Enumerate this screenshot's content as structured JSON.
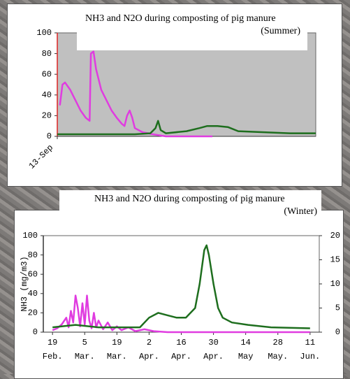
{
  "chart_data": [
    {
      "type": "line",
      "title": "NH3 and N2O during composting of pig manure (Summer)",
      "xlim": [
        0,
        100
      ],
      "xticks": [
        {
          "value": 0,
          "label": "13-Sep"
        }
      ],
      "ylim": [
        0,
        100
      ],
      "yticks": [
        0,
        20,
        40,
        60,
        80,
        100
      ],
      "series": [
        {
          "color": "#e03ce0",
          "x": [
            1,
            2,
            3,
            5,
            7,
            9,
            11,
            12.5,
            13,
            14,
            15,
            17,
            19,
            21,
            23,
            25,
            26,
            27,
            28,
            29,
            30,
            33,
            37,
            42,
            60
          ],
          "values": [
            30,
            50,
            52,
            45,
            35,
            25,
            18,
            15,
            80,
            82,
            65,
            45,
            35,
            25,
            18,
            12,
            10,
            20,
            25,
            18,
            8,
            4,
            2,
            0,
            0
          ]
        },
        {
          "color": "#1e6e1e",
          "x": [
            0,
            10,
            20,
            30,
            36,
            38,
            39,
            40,
            42,
            50,
            55,
            58,
            62,
            66,
            70,
            80,
            90,
            100
          ],
          "values": [
            2,
            2,
            2,
            2,
            3,
            8,
            15,
            6,
            3,
            5,
            8,
            10,
            10,
            9,
            5,
            4,
            3,
            3
          ]
        }
      ]
    },
    {
      "type": "line",
      "title": "NH3 and N2O during composting of pig manure (Winter)",
      "ylabel": "NH3 (mg/m3)",
      "xlim": [
        -4,
        116
      ],
      "xticks": [
        {
          "value": 0,
          "label": "19 Feb."
        },
        {
          "value": 14,
          "label": "5 Mar."
        },
        {
          "value": 28,
          "label": "19 Mar."
        },
        {
          "value": 42,
          "label": "2 Apr."
        },
        {
          "value": 56,
          "label": "16 Apr."
        },
        {
          "value": 70,
          "label": "30 Apr."
        },
        {
          "value": 84,
          "label": "14 May"
        },
        {
          "value": 98,
          "label": "28 May."
        },
        {
          "value": 112,
          "label": "11 Jun."
        }
      ],
      "ylim": [
        0,
        100
      ],
      "yticks": [
        0,
        20,
        40,
        60,
        80,
        100
      ],
      "y2lim": [
        0,
        20
      ],
      "y2ticks": [
        0,
        5,
        10,
        15,
        20
      ],
      "series": [
        {
          "color": "#e03ce0",
          "x": [
            0,
            2,
            4,
            6,
            7,
            8,
            9,
            10,
            11,
            12,
            13,
            14,
            15,
            16,
            17,
            18,
            19,
            20,
            22,
            24,
            26,
            28,
            30,
            33,
            36,
            40,
            44,
            50,
            70,
            90,
            112
          ],
          "values": [
            2,
            4,
            8,
            15,
            5,
            22,
            10,
            38,
            25,
            6,
            30,
            8,
            38,
            12,
            4,
            20,
            5,
            12,
            3,
            10,
            2,
            6,
            2,
            5,
            1,
            3,
            1,
            0,
            0,
            0,
            0
          ]
        },
        {
          "color": "#1e6e1e",
          "axis": "y2",
          "x": [
            0,
            10,
            20,
            30,
            38,
            42,
            46,
            50,
            54,
            58,
            62,
            64,
            66,
            67,
            68,
            70,
            72,
            74,
            78,
            85,
            95,
            112
          ],
          "values": [
            1,
            1.5,
            1,
            1,
            1,
            3,
            4,
            3.5,
            3,
            3,
            5,
            10,
            17,
            18,
            16,
            10,
            5,
            3,
            2,
            1.5,
            1,
            0.8
          ]
        }
      ]
    }
  ]
}
